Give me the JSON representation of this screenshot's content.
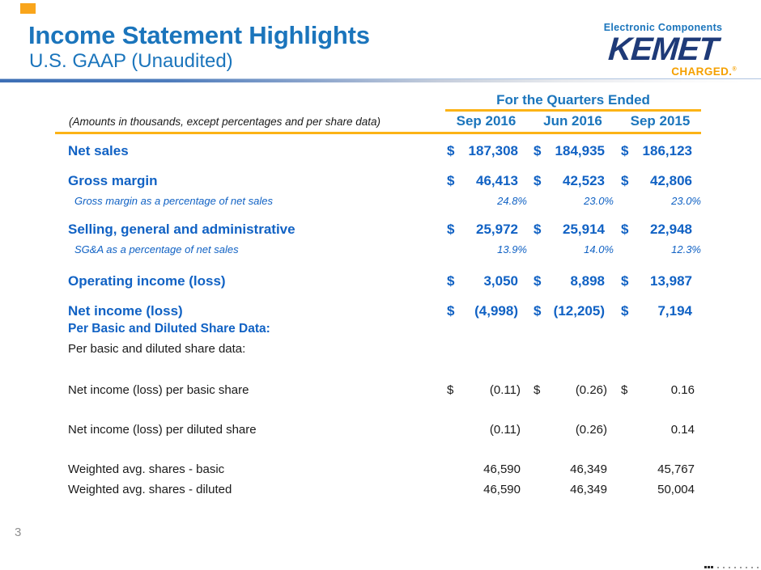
{
  "slide": {
    "title": "Income Statement Highlights",
    "subtitle": "U.S. GAAP (Unaudited)",
    "page_number": "3",
    "colors": {
      "title_blue": "#1B75BC",
      "table_blue": "#1162C4",
      "accent_orange": "#FCB316",
      "logo_navy": "#1E3A78",
      "charged_orange": "#F5A000"
    }
  },
  "logo": {
    "tagline_top": "Electronic Components",
    "wordmark": "KEMET",
    "tagline_bottom": "CHARGED.",
    "registered_mark": "®"
  },
  "table": {
    "note": "(Amounts in thousands, except percentages and per share data)",
    "header_group": "For the Quarters Ended",
    "currency": "$",
    "columns": [
      "Sep 2016",
      "Jun 2016",
      "Sep 2015"
    ],
    "rows": [
      {
        "label": "Net sales",
        "values": [
          "187,308",
          "184,935",
          "186,123"
        ]
      },
      {
        "label": "Gross margin",
        "values": [
          "46,413",
          "42,523",
          "42,806"
        ]
      },
      {
        "label": "Gross margin as a percentage of net sales",
        "values": [
          "24.8%",
          "23.0%",
          "23.0%"
        ]
      },
      {
        "label": "Selling, general and administrative",
        "values": [
          "25,972",
          "25,914",
          "22,948"
        ]
      },
      {
        "label": "SG&A as a percentage of net sales",
        "values": [
          "13.9%",
          "14.0%",
          "12.3%"
        ]
      },
      {
        "label": "Operating income (loss)",
        "values": [
          "3,050",
          "8,898",
          "13,987"
        ]
      },
      {
        "label": "Net income (loss)",
        "values": [
          "(4,998)",
          "(12,205)",
          "7,194"
        ]
      },
      {
        "label": "Per Basic and Diluted Share Data:"
      },
      {
        "label": "Per basic and diluted share data:"
      },
      {
        "label": "Net income (loss) per basic share",
        "values": [
          "(0.11)",
          "(0.26)",
          "0.16"
        ]
      },
      {
        "label": "Net income (loss) per diluted share",
        "values": [
          "(0.11)",
          "(0.26)",
          "0.14"
        ]
      },
      {
        "label": "Weighted avg. shares - basic",
        "values": [
          "46,590",
          "46,349",
          "45,767"
        ]
      },
      {
        "label": "Weighted avg. shares - diluted",
        "values": [
          "46,590",
          "46,349",
          "50,004"
        ]
      }
    ]
  }
}
